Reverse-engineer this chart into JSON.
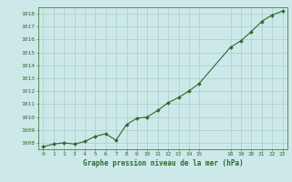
{
  "x": [
    0,
    1,
    2,
    3,
    4,
    5,
    6,
    7,
    8,
    9,
    10,
    11,
    12,
    13,
    14,
    15,
    18,
    19,
    20,
    21,
    22,
    23
  ],
  "y": [
    1007.7,
    1007.9,
    1008.0,
    1007.9,
    1008.1,
    1008.5,
    1008.7,
    1008.2,
    1009.4,
    1009.9,
    1010.0,
    1010.5,
    1011.1,
    1011.5,
    1012.0,
    1012.6,
    1015.4,
    1015.9,
    1016.6,
    1017.4,
    1017.9,
    1018.2
  ],
  "xlabel_ticks": [
    0,
    1,
    2,
    3,
    4,
    5,
    6,
    7,
    8,
    9,
    10,
    11,
    12,
    13,
    14,
    15,
    18,
    19,
    20,
    21,
    22,
    23
  ],
  "xlabel_label": "Graphe pression niveau de la mer (hPa)",
  "ylim": [
    1007.5,
    1018.5
  ],
  "yticks": [
    1008,
    1009,
    1010,
    1011,
    1012,
    1013,
    1014,
    1015,
    1016,
    1017,
    1018
  ],
  "xlim": [
    -0.5,
    23.5
  ],
  "line_color": "#2d6a2d",
  "marker_color": "#2d6a2d",
  "bg_color": "#cce8e8",
  "grid_color": "#aacece",
  "tick_color": "#2d6a2d",
  "label_color": "#2d6a2d"
}
